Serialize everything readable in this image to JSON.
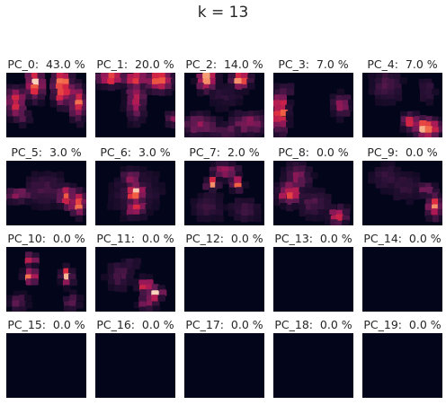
{
  "title": "k = 13",
  "chart_data": {
    "type": "heatmap",
    "title": "k = 13",
    "colormap": "rocket",
    "background": "#03051a",
    "panels": [
      {
        "label": "PC_0:  43.0 %",
        "variance_pct": 43.0,
        "pattern": "pc0"
      },
      {
        "label": "PC_1:  20.0 %",
        "variance_pct": 20.0,
        "pattern": "pc1"
      },
      {
        "label": "PC_2:  14.0 %",
        "variance_pct": 14.0,
        "pattern": "pc2"
      },
      {
        "label": "PC_3:  7.0 %",
        "variance_pct": 7.0,
        "pattern": "pc3"
      },
      {
        "label": "PC_4:  7.0 %",
        "variance_pct": 7.0,
        "pattern": "pc4"
      },
      {
        "label": "PC_5:  3.0 %",
        "variance_pct": 3.0,
        "pattern": "pc5"
      },
      {
        "label": "PC_6:  3.0 %",
        "variance_pct": 3.0,
        "pattern": "pc6"
      },
      {
        "label": "PC_7:  2.0 %",
        "variance_pct": 2.0,
        "pattern": "pc7"
      },
      {
        "label": "PC_8:  0.0 %",
        "variance_pct": 0.0,
        "pattern": "pc8"
      },
      {
        "label": "PC_9:  0.0 %",
        "variance_pct": 0.0,
        "pattern": "pc9"
      },
      {
        "label": "PC_10:  0.0 %",
        "variance_pct": 0.0,
        "pattern": "pc10"
      },
      {
        "label": "PC_11:  0.0 %",
        "variance_pct": 0.0,
        "pattern": "pc11"
      },
      {
        "label": "PC_12:  0.0 %",
        "variance_pct": 0.0,
        "pattern": "empty"
      },
      {
        "label": "PC_13:  0.0 %",
        "variance_pct": 0.0,
        "pattern": "empty"
      },
      {
        "label": "PC_14:  0.0 %",
        "variance_pct": 0.0,
        "pattern": "empty"
      },
      {
        "label": "PC_15:  0.0 %",
        "variance_pct": 0.0,
        "pattern": "empty"
      },
      {
        "label": "PC_16:  0.0 %",
        "variance_pct": 0.0,
        "pattern": "empty"
      },
      {
        "label": "PC_17:  0.0 %",
        "variance_pct": 0.0,
        "pattern": "empty"
      },
      {
        "label": "PC_18:  0.0 %",
        "variance_pct": 0.0,
        "pattern": "empty"
      },
      {
        "label": "PC_19:  0.0 %",
        "variance_pct": 0.0,
        "pattern": "empty"
      }
    ]
  }
}
